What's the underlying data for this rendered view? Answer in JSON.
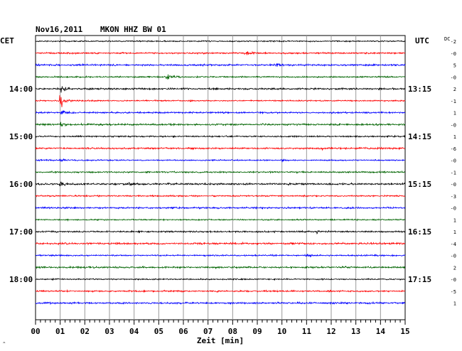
{
  "header": {
    "date": "Nov16,2011",
    "station": "MKON HHZ BW 01"
  },
  "left_timezone": "CET",
  "right_timezone": "UTC",
  "dc_label": "DC",
  "xlabel": "Zeit [min]",
  "chart_data": {
    "type": "line",
    "title": "Nov16,2011   MKON HHZ BW 01",
    "xlabel": "Zeit [min]",
    "xlim": [
      0,
      15
    ],
    "x_ticks": [
      "00",
      "01",
      "02",
      "03",
      "04",
      "05",
      "06",
      "07",
      "08",
      "09",
      "10",
      "11",
      "12",
      "13",
      "14",
      "15"
    ],
    "left_hour_labels": [
      {
        "row": 4,
        "label": "14:00"
      },
      {
        "row": 8,
        "label": "15:00"
      },
      {
        "row": 12,
        "label": "16:00"
      },
      {
        "row": 16,
        "label": "17:00"
      },
      {
        "row": 20,
        "label": "18:00"
      }
    ],
    "right_hour_labels": [
      {
        "row": 4,
        "label": "13:15"
      },
      {
        "row": 8,
        "label": "14:15"
      },
      {
        "row": 12,
        "label": "15:15"
      },
      {
        "row": 16,
        "label": "16:15"
      },
      {
        "row": 20,
        "label": "17:15"
      }
    ],
    "trace_colors": [
      "#000000",
      "#ff0000",
      "#0000ff",
      "#006400"
    ],
    "dc_offsets": [
      "-2",
      "-0",
      "5",
      "-0",
      "2",
      "-1",
      "1",
      "-0",
      "1",
      "-6",
      "-0",
      "-1",
      "-0",
      "-3",
      "-0",
      "1",
      "1",
      "-4",
      "-0",
      "2",
      "-0",
      "-5",
      "1"
    ],
    "events": [
      {
        "row": 1,
        "minute": 8.5,
        "amplitude": 4
      },
      {
        "row": 2,
        "minute": 9.8,
        "amplitude": 3
      },
      {
        "row": 3,
        "minute": 5.3,
        "amplitude": 10
      },
      {
        "row": 4,
        "minute": 1.05,
        "amplitude": 7
      },
      {
        "row": 5,
        "minute": 1.0,
        "amplitude": 16
      },
      {
        "row": 6,
        "minute": 1.05,
        "amplitude": 5
      },
      {
        "row": 7,
        "minute": 1.0,
        "amplitude": 4
      },
      {
        "row": 9,
        "minute": 11.6,
        "amplitude": 3
      },
      {
        "row": 10,
        "minute": 1.0,
        "amplitude": 3
      },
      {
        "row": 10,
        "minute": 10.0,
        "amplitude": 3
      },
      {
        "row": 12,
        "minute": 1.0,
        "amplitude": 7
      },
      {
        "row": 12,
        "minute": 3.8,
        "amplitude": 3
      },
      {
        "row": 16,
        "minute": 11.4,
        "amplitude": 3
      },
      {
        "row": 18,
        "minute": 10.95,
        "amplitude": 5
      }
    ],
    "grid": true
  }
}
